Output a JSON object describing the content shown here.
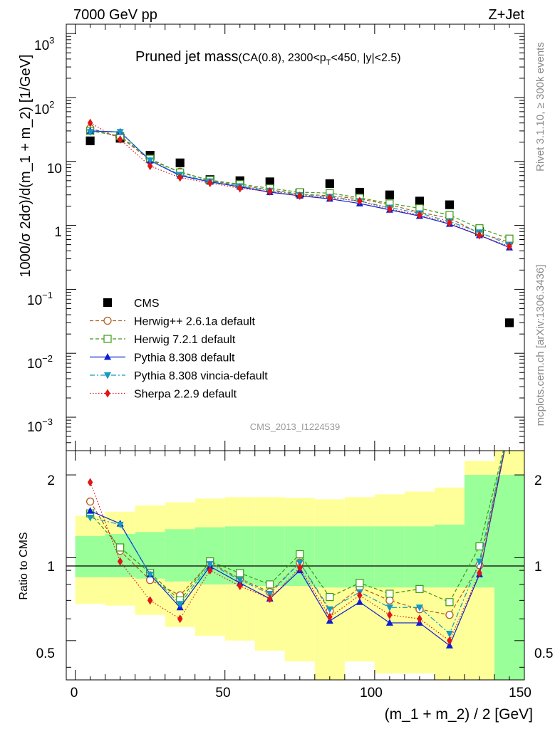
{
  "header": {
    "left": "7000 GeV pp",
    "right": "Z+Jet"
  },
  "side": {
    "rivet": "Rivet 3.1.10, ≥ 300k events",
    "mcplots": "mcplots.cern.ch [arXiv:1306.3436]"
  },
  "chart_data": [
    {
      "type": "line",
      "panel": "main",
      "title_main": "Pruned jet mass",
      "title_sub_1": "(CA(0.8), 2300<p",
      "title_sub_2": "T",
      "title_sub_3": "<450, |y|<2.5)",
      "analysis_label": "CMS_2013_I1224539",
      "ylabel": "1000/σ 2dσ)/d(m_1 + m_2) [1/GeV]",
      "yscale": "log",
      "ylim": [
        0.0003,
        1400
      ],
      "xlim": [
        -3,
        150
      ],
      "ytick_bases": [
        "10",
        "10",
        "10",
        "10",
        "10"
      ],
      "ytick_exps": [
        "−3",
        "−2",
        "−1",
        "2",
        "3"
      ],
      "ytick_plain": [
        "1",
        "10"
      ],
      "legend_position": "lower-left",
      "x": [
        5,
        15,
        25,
        35,
        45,
        55,
        65,
        75,
        85,
        95,
        105,
        115,
        125,
        135,
        145
      ],
      "series": [
        {
          "name": "CMS",
          "color": "#000000",
          "marker": "square",
          "line": "none",
          "values": [
            21,
            23,
            12.5,
            9.5,
            5.2,
            5.0,
            4.8,
            3.2,
            4.5,
            3.3,
            3.0,
            2.4,
            2.1,
            0.8,
            0.03
          ]
        },
        {
          "name": "Herwig++ 2.6.1a default",
          "color": "#b35b1e",
          "marker": "circle-open",
          "line": "dashed",
          "values": [
            33,
            24,
            10.5,
            6.9,
            5.0,
            4.2,
            3.6,
            3.1,
            2.9,
            2.6,
            2.1,
            1.6,
            1.3,
            0.75,
            0.55
          ]
        },
        {
          "name": "Herwig 7.2.1 default",
          "color": "#3a9a12",
          "marker": "square-open",
          "line": "dashed",
          "values": [
            30,
            25,
            11.0,
            6.7,
            5.1,
            4.4,
            3.8,
            3.3,
            3.2,
            2.7,
            2.2,
            1.85,
            1.45,
            0.9,
            0.62
          ]
        },
        {
          "name": "Pythia 8.308 default",
          "color": "#0a1fd4",
          "marker": "triangle-up",
          "line": "solid",
          "values": [
            30,
            29,
            10.3,
            6.0,
            4.8,
            4.0,
            3.3,
            2.9,
            2.6,
            2.2,
            1.75,
            1.4,
            1.05,
            0.7,
            0.45
          ]
        },
        {
          "name": "Pythia 8.308 vincia-default",
          "color": "#1599c0",
          "marker": "triangle-down",
          "line": "dashdot",
          "values": [
            29,
            29,
            10.4,
            6.2,
            4.9,
            4.1,
            3.5,
            3.0,
            2.8,
            2.4,
            1.9,
            1.55,
            1.15,
            0.78,
            0.5
          ]
        },
        {
          "name": "Sherpa 2.2.9 default",
          "color": "#e01515",
          "marker": "diamond",
          "line": "dotted",
          "values": [
            40,
            22,
            8.5,
            5.6,
            4.6,
            3.8,
            3.4,
            2.9,
            2.7,
            2.4,
            1.8,
            1.45,
            1.1,
            0.7,
            0.47
          ]
        }
      ]
    },
    {
      "type": "line",
      "panel": "ratio",
      "ylabel": "Ratio to CMS",
      "yscale": "log",
      "ylim": [
        0.36,
        2.45
      ],
      "xlabel": "(m_1 + m_2) / 2 [GeV]",
      "xlim": [
        -3,
        150
      ],
      "yticks": [
        0.5,
        1,
        2
      ],
      "ytick_labels": [
        "0.5",
        "1",
        "2"
      ],
      "xticks": [
        0,
        50,
        100,
        150
      ],
      "xtick_labels": [
        "0",
        "50",
        "100",
        "150"
      ],
      "x": [
        5,
        15,
        25,
        35,
        45,
        55,
        65,
        75,
        85,
        95,
        105,
        115,
        125,
        135,
        145
      ],
      "bands": {
        "bins": [
          [
            0,
            10
          ],
          [
            10,
            20
          ],
          [
            20,
            30
          ],
          [
            30,
            40
          ],
          [
            40,
            50
          ],
          [
            50,
            60
          ],
          [
            60,
            70
          ],
          [
            70,
            80
          ],
          [
            80,
            90
          ],
          [
            90,
            100
          ],
          [
            100,
            110
          ],
          [
            110,
            120
          ],
          [
            120,
            130
          ],
          [
            130,
            140
          ],
          [
            140,
            150
          ]
        ],
        "inner_color": "#99ff99",
        "outer_color": "#ffff99",
        "inner_lo": [
          0.85,
          0.85,
          0.84,
          0.82,
          0.8,
          0.8,
          0.79,
          0.79,
          0.78,
          0.78,
          0.78,
          0.78,
          0.78,
          0.78,
          0.36
        ],
        "inner_hi": [
          1.2,
          1.22,
          1.24,
          1.27,
          1.29,
          1.3,
          1.3,
          1.3,
          1.3,
          1.3,
          1.3,
          1.3,
          1.32,
          2.0,
          2.0
        ],
        "outer_lo": [
          0.68,
          0.67,
          0.62,
          0.56,
          0.52,
          0.5,
          0.46,
          0.42,
          0.36,
          0.42,
          0.38,
          0.38,
          0.36,
          0.36,
          0.36
        ],
        "outer_hi": [
          1.42,
          1.47,
          1.55,
          1.59,
          1.64,
          1.66,
          1.66,
          1.65,
          1.63,
          1.66,
          1.7,
          1.74,
          1.8,
          2.25,
          2.45
        ]
      },
      "series": [
        {
          "name": "Herwig++ 2.6.1a default",
          "color": "#b35b1e",
          "marker": "circle-open",
          "line": "dashed",
          "values": [
            1.6,
            1.06,
            0.83,
            0.73,
            0.96,
            0.84,
            0.75,
            0.96,
            0.64,
            0.78,
            0.7,
            0.65,
            0.62,
            0.94,
            3.0
          ]
        },
        {
          "name": "Herwig 7.2.1 default",
          "color": "#3a9a12",
          "marker": "square-open",
          "line": "dashed",
          "values": [
            1.45,
            1.09,
            0.88,
            0.7,
            0.97,
            0.88,
            0.8,
            1.03,
            0.72,
            0.81,
            0.74,
            0.77,
            0.69,
            1.1,
            3.0
          ]
        },
        {
          "name": "Pythia 8.308 default",
          "color": "#0a1fd4",
          "marker": "triangle-up",
          "line": "solid",
          "values": [
            1.48,
            1.33,
            0.87,
            0.66,
            0.93,
            0.81,
            0.71,
            0.9,
            0.59,
            0.69,
            0.58,
            0.58,
            0.48,
            0.87,
            3.0
          ]
        },
        {
          "name": "Pythia 8.308 vincia-default",
          "color": "#1599c0",
          "marker": "triangle-down",
          "line": "dashdot",
          "values": [
            1.4,
            1.32,
            0.87,
            0.68,
            0.95,
            0.83,
            0.74,
            0.96,
            0.65,
            0.75,
            0.66,
            0.66,
            0.53,
            0.97,
            3.0
          ]
        },
        {
          "name": "Sherpa 2.2.9 default",
          "color": "#e01515",
          "marker": "diamond",
          "line": "dotted",
          "values": [
            1.88,
            0.97,
            0.7,
            0.6,
            0.9,
            0.79,
            0.71,
            0.92,
            0.61,
            0.73,
            0.62,
            0.6,
            0.5,
            0.88,
            3.0
          ]
        }
      ]
    }
  ]
}
